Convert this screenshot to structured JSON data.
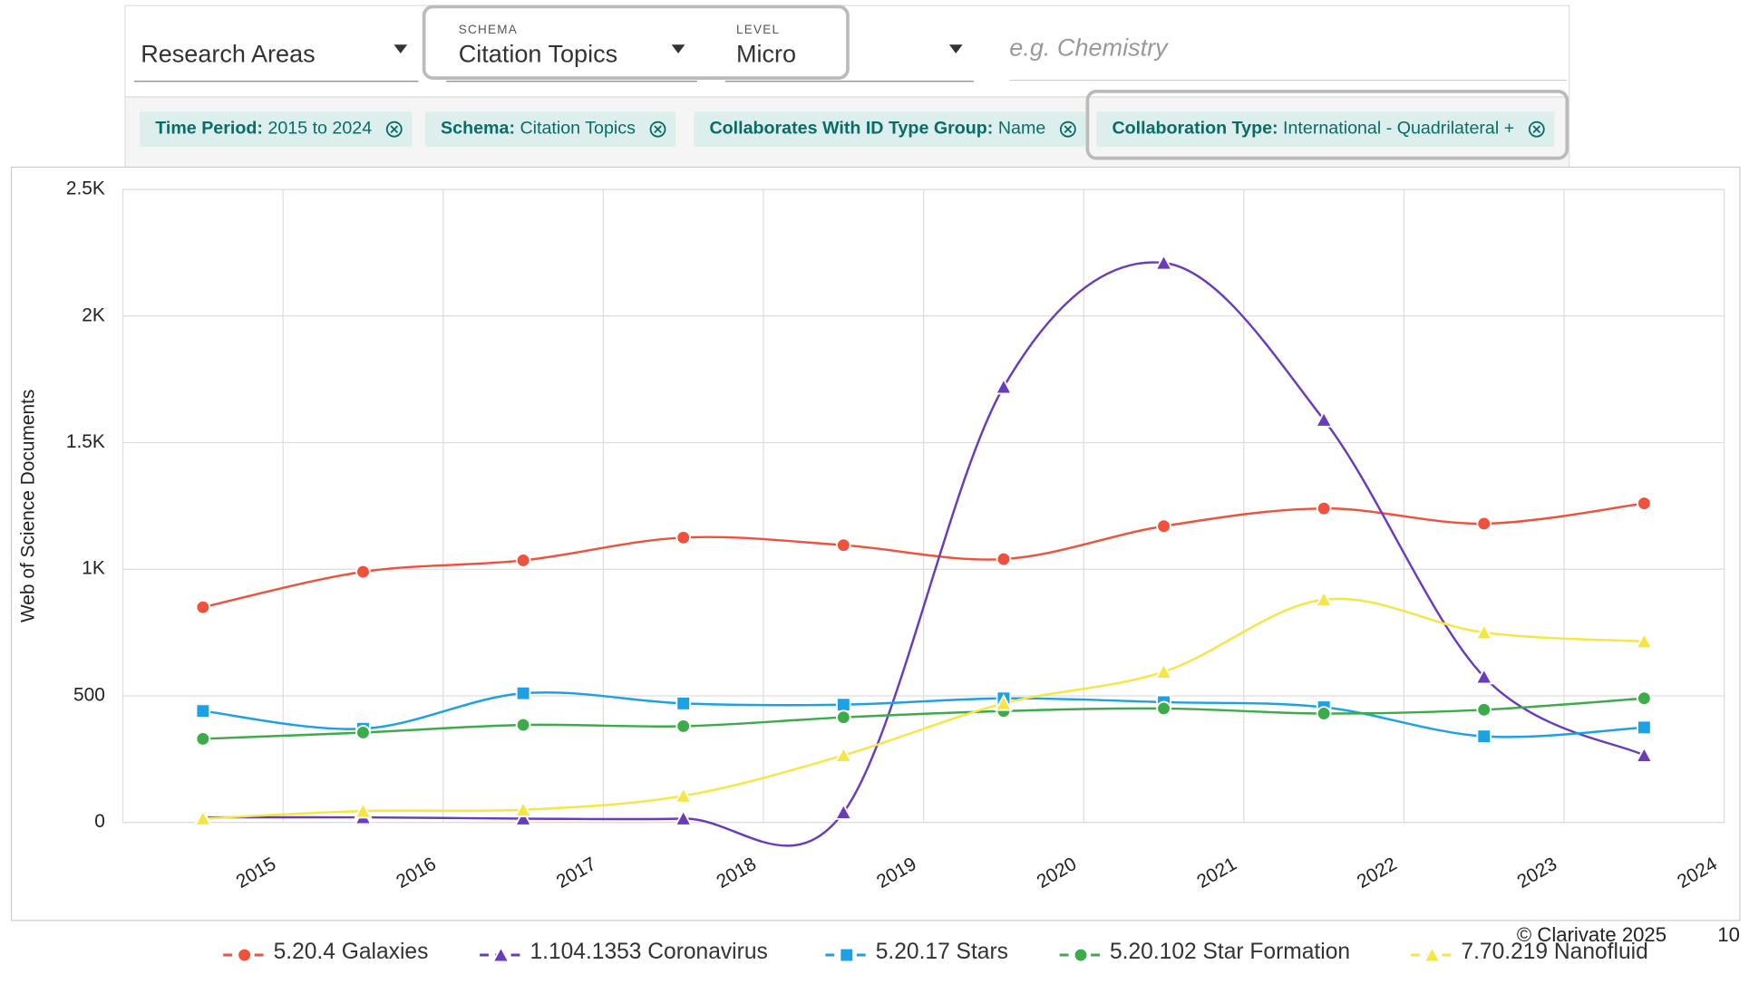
{
  "filters": {
    "research_areas": "Research Areas",
    "schema_caption": "SCHEMA",
    "schema": "Citation Topics",
    "level_caption": "LEVEL",
    "level": "Micro",
    "search_placeholder": "e.g. Chemistry"
  },
  "chips": [
    {
      "key": "Time Period:",
      "value": "2015 to 2024"
    },
    {
      "key": "Schema:",
      "value": "Citation Topics"
    },
    {
      "key": "Collaborates With ID Type Group:",
      "value": "Name"
    },
    {
      "key": "Collaboration Type:",
      "value": "International - Quadrilateral +"
    }
  ],
  "chart_data": {
    "type": "line",
    "y_label": "Web of Science Documents",
    "categories": [
      "2015",
      "2016",
      "2017",
      "2018",
      "2019",
      "2020",
      "2021",
      "2022",
      "2023",
      "2024"
    ],
    "series": [
      {
        "name": "5.20.4 Galaxies",
        "color": "#f0513c",
        "marker": "circle",
        "values": [
          850,
          990,
          1035,
          1125,
          1095,
          1040,
          1170,
          1240,
          1180,
          1260
        ]
      },
      {
        "name": "1.104.1353 Coronavirus",
        "color": "#6a3cbc",
        "marker": "triangle",
        "values": [
          20,
          20,
          15,
          15,
          40,
          1720,
          2210,
          1590,
          575,
          265
        ]
      },
      {
        "name": "5.20.17 Stars",
        "color": "#1da1e6",
        "marker": "square",
        "values": [
          440,
          370,
          510,
          470,
          465,
          490,
          475,
          455,
          340,
          375
        ]
      },
      {
        "name": "5.20.102 Star Formation",
        "color": "#3cab4a",
        "marker": "circle",
        "values": [
          330,
          355,
          385,
          380,
          415,
          440,
          450,
          430,
          445,
          490
        ]
      },
      {
        "name": "7.70.219 Nanofluid",
        "color": "#f5e642",
        "marker": "triangle",
        "values": [
          15,
          45,
          50,
          105,
          265,
          470,
          595,
          880,
          750,
          715
        ]
      }
    ],
    "ylim": [
      0,
      2500
    ],
    "yticks": [
      0,
      500,
      {
        "value": 1000,
        "label": "1K"
      },
      {
        "value": 1500,
        "label": "1.5K"
      },
      {
        "value": 2000,
        "label": "2K"
      },
      {
        "value": 2500,
        "label": "2.5K"
      }
    ],
    "grid": true
  },
  "footer": {
    "copyright": "© Clarivate 2025",
    "page": "10"
  }
}
